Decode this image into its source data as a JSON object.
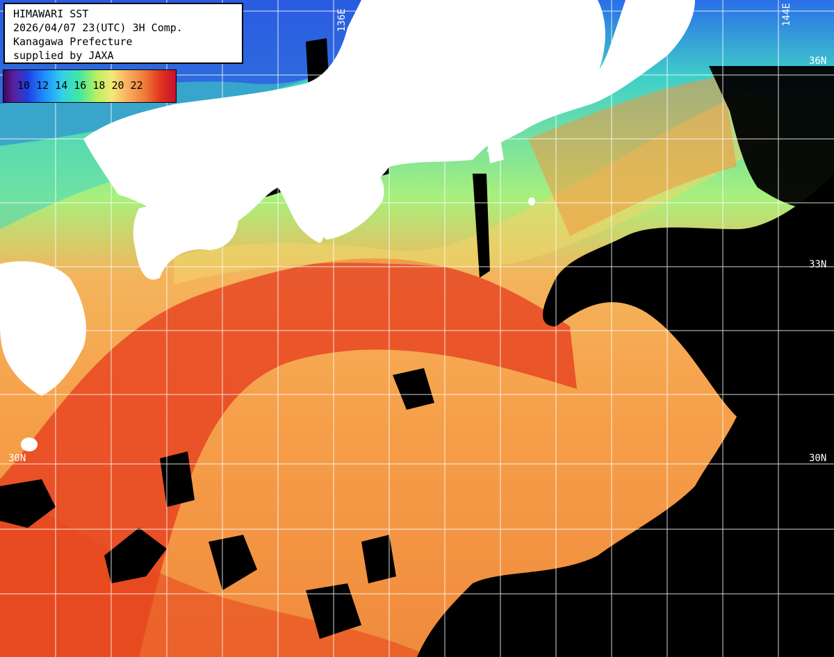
{
  "title": {
    "line1": "HIMAWARI SST",
    "line2": "2026/04/07 23(UTC) 3H Comp.",
    "line3": "Kanagawa Prefecture",
    "line4": "supplied by JAXA"
  },
  "colorbar": {
    "labels": "10 12 14 16 18 20 22",
    "min": 10,
    "max": 22
  },
  "grid_labels": {
    "lon_136": "136E",
    "lon_144": "144E",
    "lat_36": "36N",
    "lat_33": "33N",
    "lat_30_left": "30N",
    "lat_30_right": "30N"
  },
  "colors": {
    "land": "#ffffff",
    "no_data": "#000000",
    "grid": "#ffffff",
    "cold_water": "#1e6ae0",
    "cool_water": "#3ad0c8",
    "mild_water": "#9ff07a",
    "warm_water": "#f6b050",
    "hot_water": "#e02a14"
  }
}
